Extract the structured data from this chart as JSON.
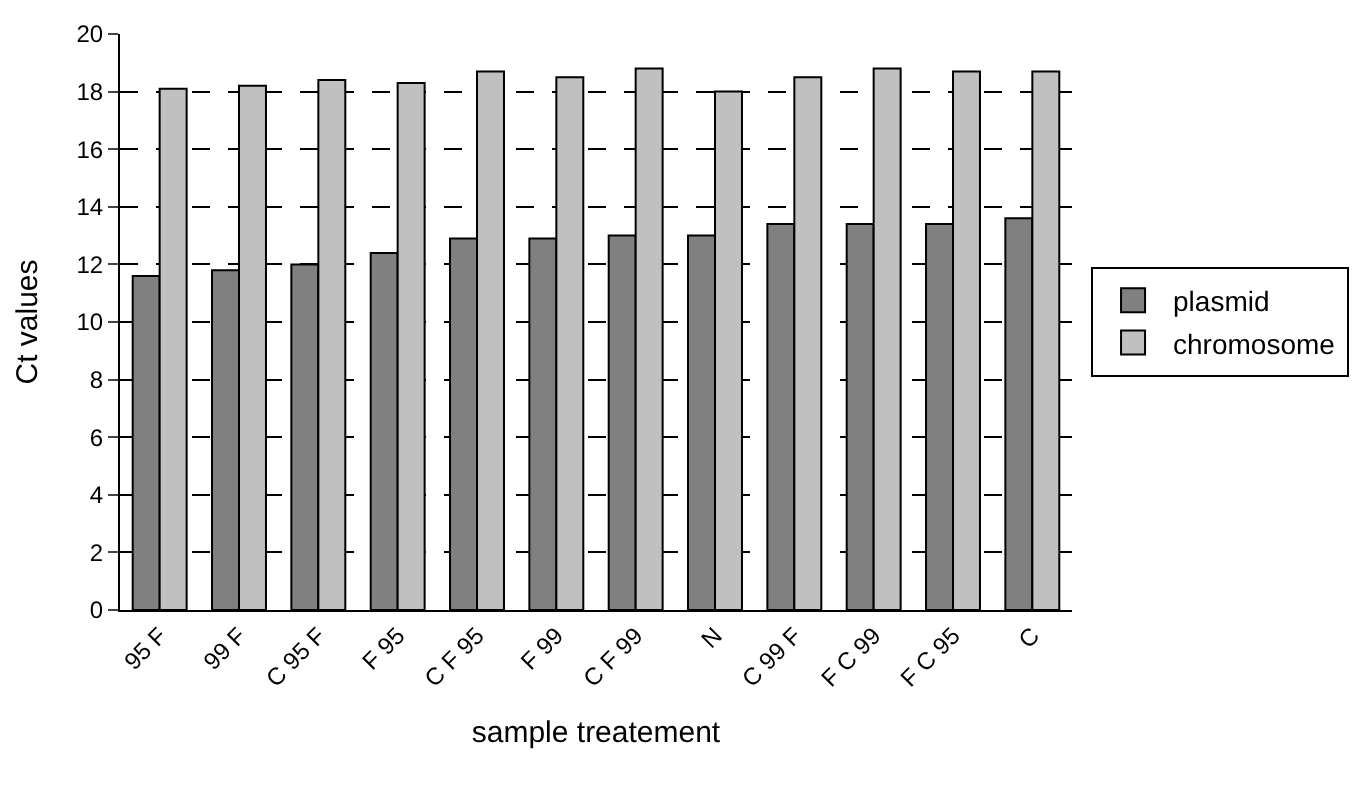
{
  "chart_data": {
    "type": "bar",
    "xlabel": "sample treatement",
    "ylabel": "Ct values",
    "categories": [
      "95 F",
      "99 F",
      "C 95 F",
      "F 95",
      "C F 95",
      "F 99",
      "C F 99",
      "N",
      "C 99 F",
      "F C 99",
      "F C 95",
      "C"
    ],
    "series": [
      {
        "name": "plasmid",
        "color": "#808080",
        "values": [
          11.6,
          11.8,
          12.0,
          12.4,
          12.9,
          12.9,
          13.0,
          13.0,
          13.4,
          13.4,
          13.4,
          13.6
        ]
      },
      {
        "name": "chromosome",
        "color": "#c0c0c0",
        "values": [
          18.1,
          18.2,
          18.4,
          18.3,
          18.7,
          18.5,
          18.8,
          18.0,
          18.5,
          18.8,
          18.7,
          18.7
        ]
      }
    ],
    "ylim": [
      0,
      20
    ],
    "yticks": [
      0,
      2,
      4,
      6,
      8,
      10,
      12,
      14,
      16,
      18,
      20
    ],
    "grid": "y",
    "legend": "right"
  }
}
